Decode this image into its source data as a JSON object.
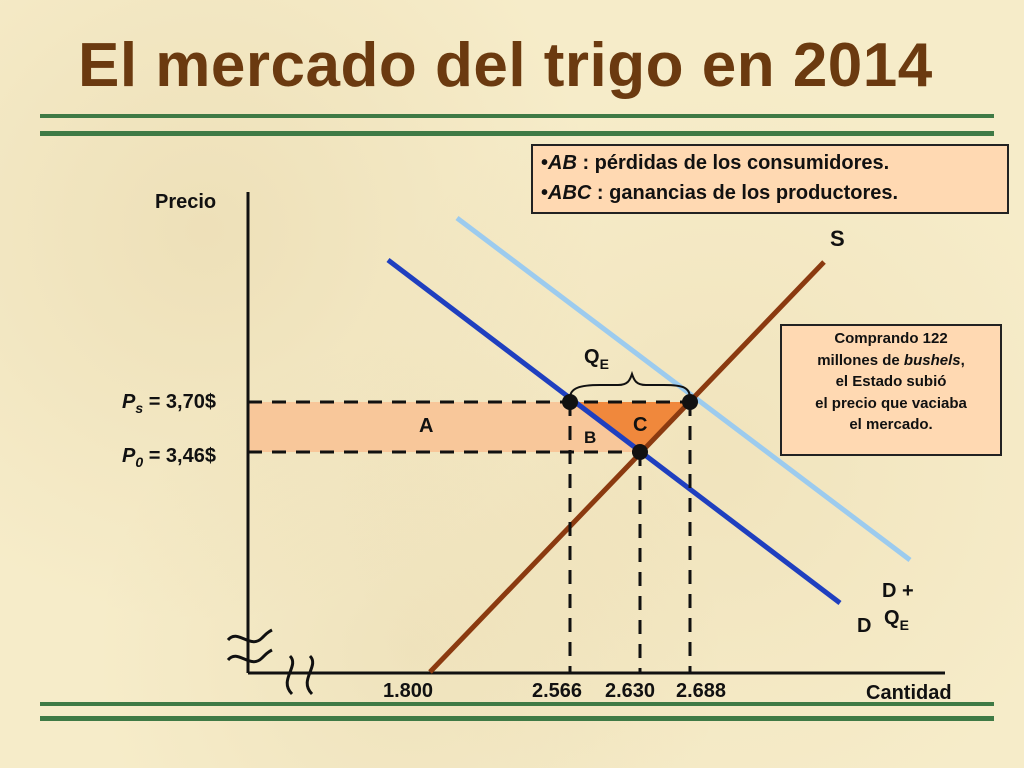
{
  "title": "El mercado del trigo en 2014",
  "legend": {
    "ab_bullet": "•",
    "ab_term": "AB",
    "ab_text": " : pérdidas de los consumidores.",
    "abc_bullet": "•",
    "abc_term": "ABC",
    "abc_text": " : ganancias de los productores."
  },
  "annotation": {
    "line1": "Comprando 122",
    "line2_a": "millones de ",
    "line2_b": "bushels",
    "line2_c": ",",
    "line3": "el Estado subió",
    "line4": "el precio que vaciaba",
    "line5": "el mercado."
  },
  "axes": {
    "y_label": "Precio",
    "x_label": "Cantidad"
  },
  "prices": {
    "ps_letter": "P",
    "ps_sub": "s",
    "ps_value": " = 3,70$",
    "p0_letter": "P",
    "p0_sub": "0",
    "p0_value": " = 3,46$"
  },
  "quantities": [
    "1.800",
    "2.566",
    "2.630",
    "2.688"
  ],
  "curves": {
    "supply": "S",
    "demand": "D",
    "demand_shift_a": "D +",
    "demand_shift_b": "Q",
    "demand_shift_sub": "E"
  },
  "areas": {
    "a": "A",
    "b": "B",
    "c": "C"
  },
  "qe": {
    "letter": "Q",
    "sub": "E"
  },
  "colors": {
    "supply": "#8b3a10",
    "demand": "#1f3fbf",
    "demand_shift": "#9ccbee",
    "area_a": "#f8c79a",
    "area_c": "#f0883c",
    "rule": "#3f7a45",
    "title": "#6b3a10"
  }
}
